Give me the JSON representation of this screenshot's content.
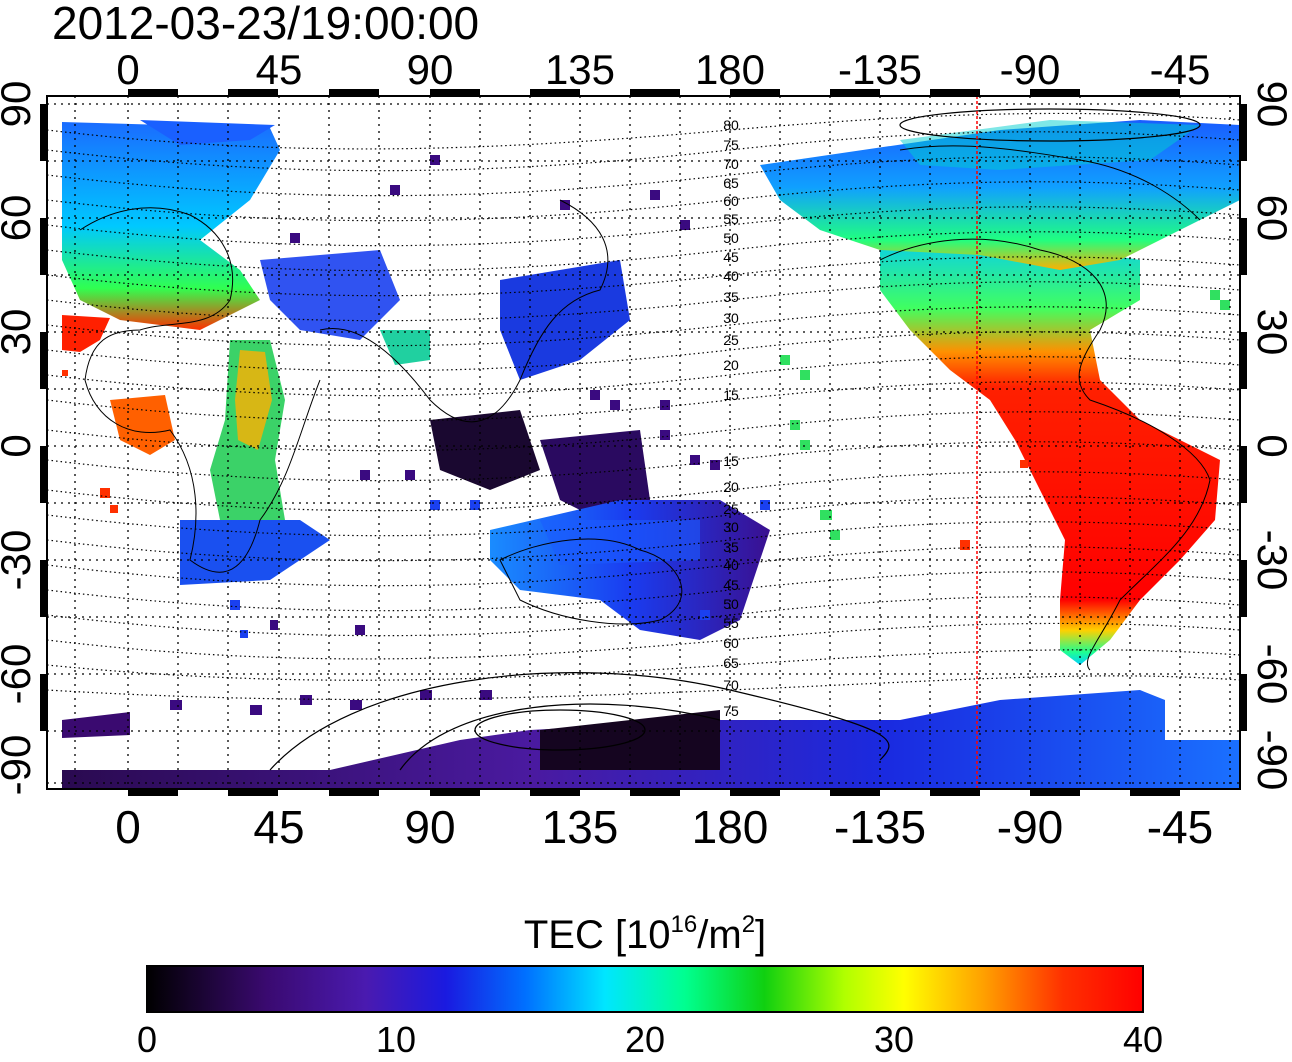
{
  "title": "2012-03-23/19:00:00",
  "map": {
    "lon_labels_top": [
      "0",
      "45",
      "90",
      "135",
      "180",
      "-135",
      "-90",
      "-45"
    ],
    "lon_labels_bottom": [
      "0",
      "45",
      "90",
      "135",
      "180",
      "-135",
      "-90",
      "-45"
    ],
    "lat_labels_left": [
      "90",
      "60",
      "30",
      "0",
      "-30",
      "-60",
      "-90"
    ],
    "lat_labels_right": [
      "90",
      "60",
      "30",
      "0",
      "-30",
      "-60",
      "-90"
    ],
    "contour_labels_north": [
      "80",
      "75",
      "70",
      "65",
      "60",
      "55",
      "50",
      "45",
      "40",
      "35",
      "30",
      "25",
      "20",
      "15"
    ],
    "contour_labels_south": [
      "15",
      "20",
      "25",
      "30",
      "35",
      "40",
      "45",
      "50",
      "55",
      "60",
      "65",
      "70",
      "75"
    ],
    "marker_line_color": "#ff0000"
  },
  "colorbar": {
    "label_main": "TEC  [10",
    "label_exp": "16",
    "label_mid": "/m",
    "label_exp2": "2",
    "label_end": "]",
    "ticks": [
      "0",
      "10",
      "20",
      "30",
      "40"
    ],
    "min": 0,
    "max": 40,
    "colormap": "jet-like: black → purple → blue → cyan → green → yellow → orange → red"
  }
}
